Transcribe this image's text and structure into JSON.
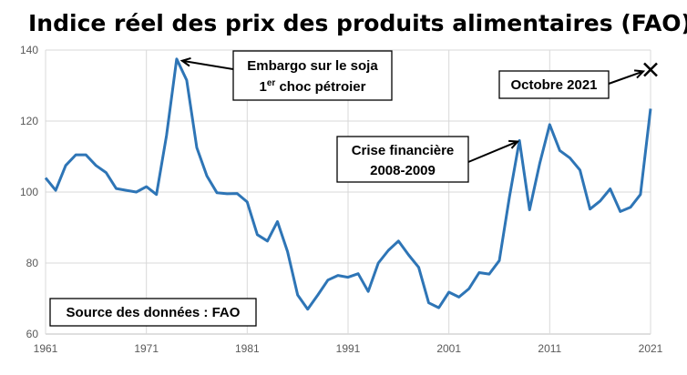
{
  "chart_data": {
    "type": "line",
    "title": "Indice réel des prix des produits alimentaires (FAO)",
    "xlabel": "",
    "ylabel": "",
    "xlim": [
      1961,
      2021
    ],
    "ylim": [
      60,
      140
    ],
    "yticks": [
      60,
      80,
      100,
      120,
      140
    ],
    "xticks": [
      1961,
      1971,
      1981,
      1991,
      2001,
      2011,
      2021
    ],
    "grid": true,
    "line_color": "#2e75b6",
    "series": [
      {
        "x": [
          1961,
          1962,
          1963,
          1964,
          1965,
          1966,
          1967,
          1968,
          1969,
          1970,
          1971,
          1972,
          1973,
          1974,
          1975,
          1976,
          1977,
          1978,
          1979,
          1980,
          1981,
          1982,
          1983,
          1984,
          1985,
          1986,
          1987,
          1988,
          1989,
          1990,
          1991,
          1992,
          1993,
          1994,
          1995,
          1996,
          1997,
          1998,
          1999,
          2000,
          2001,
          2002,
          2003,
          2004,
          2005,
          2006,
          2007,
          2008,
          2009,
          2010,
          2011,
          2012,
          2013,
          2014,
          2015,
          2016,
          2017,
          2018,
          2019,
          2020,
          2021
        ],
        "values": [
          104,
          100.5,
          107.5,
          110.5,
          110.5,
          107.5,
          105.5,
          101,
          100.5,
          100,
          101.5,
          99.3,
          116,
          137.5,
          131.5,
          112.5,
          104.5,
          99.8,
          99.5,
          99.6,
          97.2,
          88,
          86.2,
          91.7,
          83.2,
          71,
          67,
          71,
          75.2,
          76.5,
          76,
          77,
          72,
          80,
          83.6,
          86.2,
          82.3,
          78.8,
          68.8,
          67.4,
          71.8,
          70.4,
          72.8,
          77.3,
          76.9,
          80.7,
          98.6,
          114.5,
          95,
          108,
          119,
          111.7,
          109.6,
          106.2,
          95.2,
          97.5,
          100.9,
          94.5,
          95.7,
          99.3,
          123.5
        ]
      }
    ],
    "marker": {
      "x": 2021,
      "value": 134.5,
      "symbol": "x"
    },
    "annotations": [
      {
        "lines": [
          "Embargo sur le soja",
          "1er choc pétroier"
        ],
        "target": {
          "x": 1974,
          "y": 137.5
        }
      },
      {
        "lines": [
          "Octobre 2021"
        ],
        "target": {
          "x": 2021,
          "y": 134.5
        }
      },
      {
        "lines": [
          "Crise financière",
          "2008-2009"
        ],
        "target": {
          "x": 2008,
          "y": 114.5
        }
      },
      {
        "lines": [
          "Source des données : FAO"
        ]
      }
    ]
  },
  "annotations_text": {
    "embargo_line1": "Embargo sur le soja",
    "embargo_line2_prefix": "1",
    "embargo_line2_sup": "er",
    "embargo_line2_rest": " choc pétroier",
    "october": "Octobre 2021",
    "crisis_line1": "Crise financière",
    "crisis_line2": "2008-2009",
    "source": "Source des données : FAO"
  }
}
